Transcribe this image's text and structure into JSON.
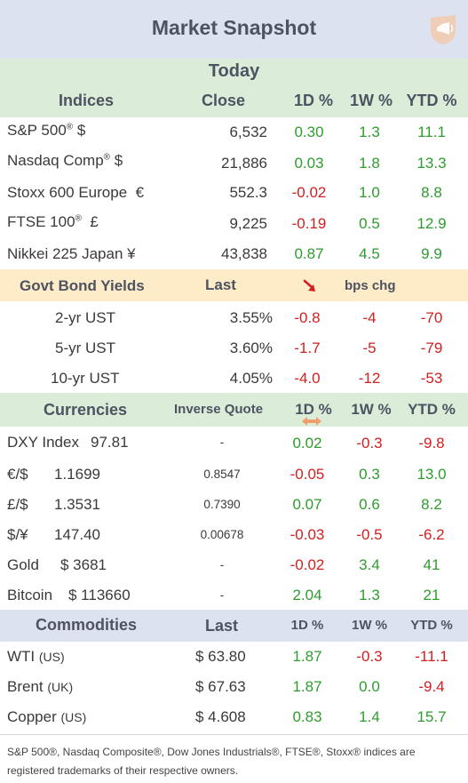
{
  "header": {
    "title": "Market Snapshot",
    "logo_icon": "megaphone-logo-icon"
  },
  "colors": {
    "positive": "#2e9c2e",
    "negative": "#d21f1f",
    "green_band": "#dbecd9",
    "yellow_band": "#fdecc7",
    "blue_band": "#dde2f1"
  },
  "indices": {
    "section_top": "Today",
    "headers": {
      "name": "Indices",
      "close": "Close",
      "d1": "1D %",
      "w1": "1W %",
      "ytd": "YTD %"
    },
    "rows": [
      {
        "name": "S&P 500",
        "sup": "®",
        "suffix": " $",
        "close": "6,532",
        "d1": "0.30",
        "w1": "1.3",
        "ytd": "11.1"
      },
      {
        "name": "Nasdaq Comp",
        "sup": "®",
        "suffix": " $",
        "close": "21,886",
        "d1": "0.03",
        "w1": "1.8",
        "ytd": "13.3"
      },
      {
        "name": "Stoxx 600 Europe",
        "sup": "",
        "suffix": "  €",
        "close": "552.3",
        "d1": "-0.02",
        "w1": "1.0",
        "ytd": "8.8"
      },
      {
        "name": "FTSE 100",
        "sup": "®",
        "suffix": "  £",
        "close": "9,225",
        "d1": "-0.19",
        "w1": "0.5",
        "ytd": "12.9"
      },
      {
        "name": "Nikkei 225 Japan",
        "sup": "",
        "suffix": " ¥",
        "close": "43,838",
        "d1": "0.87",
        "w1": "4.5",
        "ytd": "9.9"
      }
    ]
  },
  "bonds": {
    "headers": {
      "name": "Govt Bond Yields",
      "last": "Last",
      "arrow_icon": "down-arrow-icon",
      "bps": "bps chg"
    },
    "rows": [
      {
        "name": "2-yr UST",
        "last": "3.55%",
        "d1": "-0.8",
        "w1": "-4",
        "ytd": "-70"
      },
      {
        "name": "5-yr UST",
        "last": "3.60%",
        "d1": "-1.7",
        "w1": "-5",
        "ytd": "-79"
      },
      {
        "name": "10-yr UST",
        "last": "4.05%",
        "d1": "-4.0",
        "w1": "-12",
        "ytd": "-53"
      }
    ]
  },
  "currencies": {
    "headers": {
      "name": "Currencies",
      "inverse": "Inverse Quote",
      "d1": "1D %",
      "w1": "1W %",
      "ytd": "YTD %",
      "swap_icon": "swap-arrows-icon"
    },
    "rows": [
      {
        "name": "DXY Index",
        "value": "97.81",
        "inverse": "-",
        "d1": "0.02",
        "w1": "-0.3",
        "ytd": "-9.8"
      },
      {
        "name": "€/$",
        "value": "1.1699",
        "inverse": "0.8547",
        "d1": "-0.05",
        "w1": "0.3",
        "ytd": "13.0"
      },
      {
        "name": "£/$",
        "value": "1.3531",
        "inverse": "0.7390",
        "d1": "0.07",
        "w1": "0.6",
        "ytd": "8.2"
      },
      {
        "name": "$/¥",
        "value": "147.40",
        "inverse": "0.00678",
        "d1": "-0.03",
        "w1": "-0.5",
        "ytd": "-6.2"
      },
      {
        "name": "Gold",
        "value": "$ 3681",
        "inverse": "-",
        "d1": "-0.02",
        "w1": "3.4",
        "ytd": "41"
      },
      {
        "name": "Bitcoin",
        "value": "$ 113660",
        "inverse": "-",
        "d1": "2.04",
        "w1": "1.3",
        "ytd": "21"
      }
    ]
  },
  "commodities": {
    "headers": {
      "name": "Commodities",
      "last": "Last",
      "d1": "1D %",
      "w1": "1W %",
      "ytd": "YTD %"
    },
    "rows": [
      {
        "name": "WTI",
        "region": "(US)",
        "last": "$ 63.80",
        "d1": "1.87",
        "w1": "-0.3",
        "ytd": "-11.1"
      },
      {
        "name": "Brent",
        "region": "(UK)",
        "last": "$ 67.63",
        "d1": "1.87",
        "w1": "0.0",
        "ytd": "-9.4"
      },
      {
        "name": "Copper",
        "region": "(US)",
        "last": "$ 4.608",
        "d1": "0.83",
        "w1": "1.4",
        "ytd": "15.7"
      }
    ]
  },
  "footnote": "S&P 500®, Nasdaq Composite®, Dow Jones Industrials®, FTSE®, Stoxx® indices are registered trademarks of their respective owners."
}
